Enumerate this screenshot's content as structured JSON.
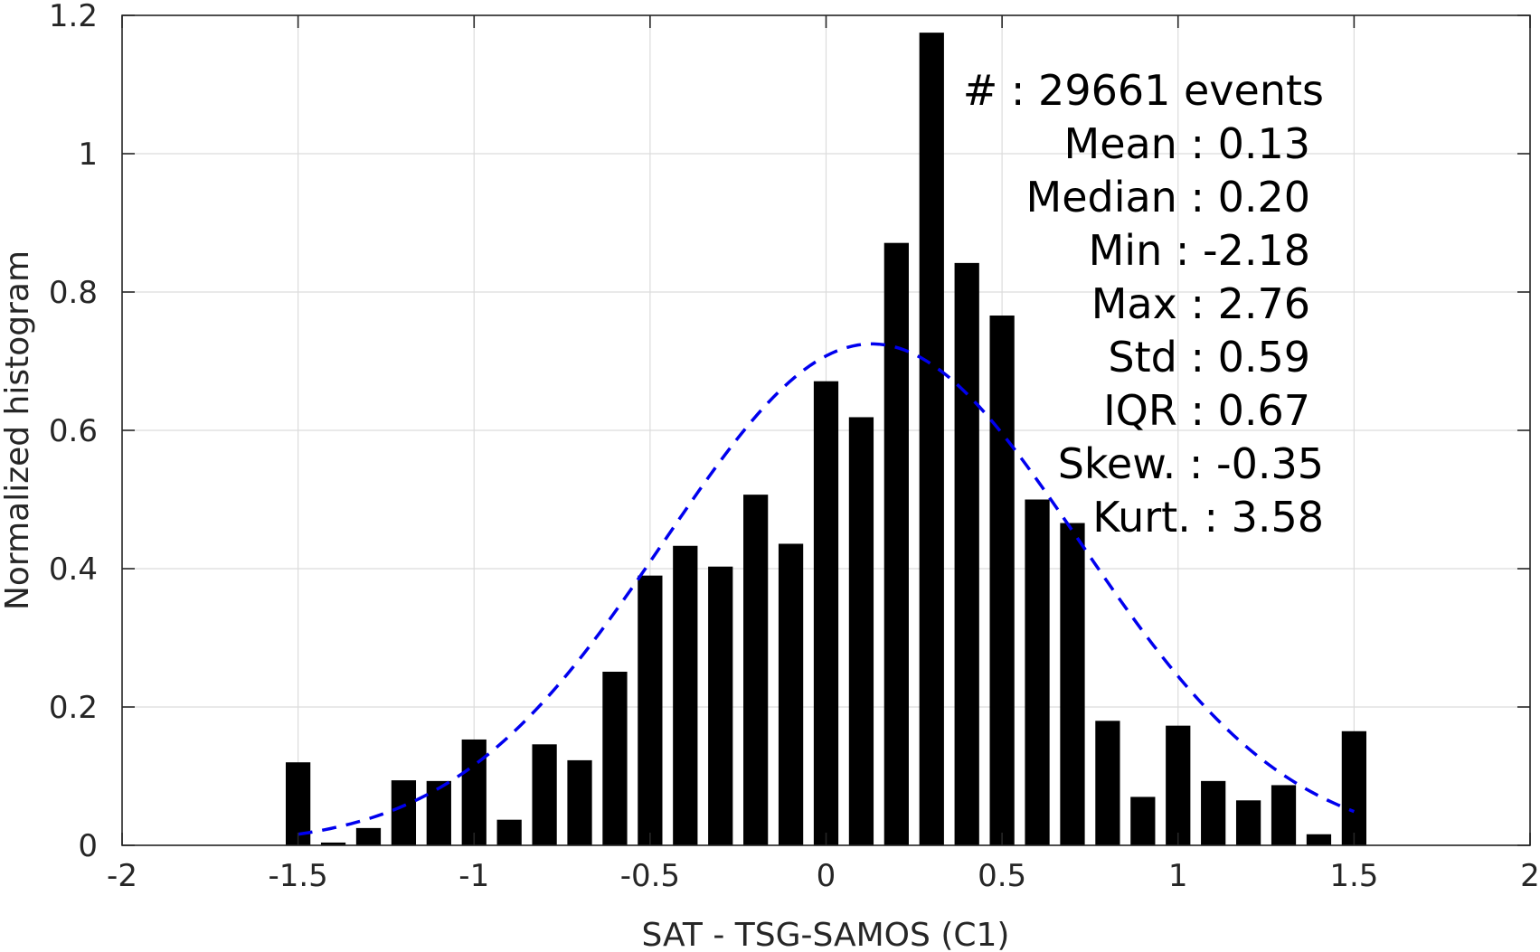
{
  "chart_data": {
    "type": "bar",
    "xlabel": "SAT - TSG-SAMOS (C1)",
    "ylabel": "Normalized histogram",
    "xlim": [
      -2,
      2
    ],
    "ylim": [
      0,
      1.2
    ],
    "grid": true,
    "x_ticks": [
      "-2",
      "-1.5",
      "-1",
      "-0.5",
      "0",
      "0.5",
      "1",
      "1.5",
      "2"
    ],
    "y_ticks": [
      "0",
      "0.2",
      "0.4",
      "0.6",
      "0.8",
      "1",
      "1.2"
    ],
    "bar_color": "#000000",
    "bin_centers": [
      -1.5,
      -1.4,
      -1.3,
      -1.2,
      -1.1,
      -1.0,
      -0.9,
      -0.8,
      -0.7,
      -0.6,
      -0.5,
      -0.4,
      -0.3,
      -0.2,
      -0.1,
      0.0,
      0.1,
      0.2,
      0.3,
      0.4,
      0.5,
      0.6,
      0.7,
      0.8,
      0.9,
      1.0,
      1.1,
      1.2,
      1.3,
      1.4,
      1.5
    ],
    "bar_width": 0.07,
    "values": [
      0.12,
      0.004,
      0.025,
      0.094,
      0.093,
      0.153,
      0.037,
      0.146,
      0.123,
      0.251,
      0.39,
      0.433,
      0.403,
      0.507,
      0.436,
      0.671,
      0.619,
      0.871,
      1.175,
      0.842,
      0.766,
      0.5,
      0.466,
      0.18,
      0.07,
      0.173,
      0.093,
      0.065,
      0.087,
      0.016,
      0.165
    ],
    "fit": {
      "name": "normal fit",
      "style": "dashed",
      "color": "#0000ee",
      "mean": 0.13,
      "std": 0.59,
      "peak": 0.725,
      "x_range": [
        -1.5,
        1.5
      ]
    }
  },
  "stats": {
    "count": "#  : 29661 events",
    "mean": "Mean : 0.13",
    "median": "Median : 0.20",
    "min": "Min : -2.18",
    "max": "Max : 2.76",
    "std": "Std : 0.59",
    "iqr": "IQR : 0.67",
    "skew": "Skew. : -0.35",
    "kurt": "Kurt. : 3.58"
  }
}
